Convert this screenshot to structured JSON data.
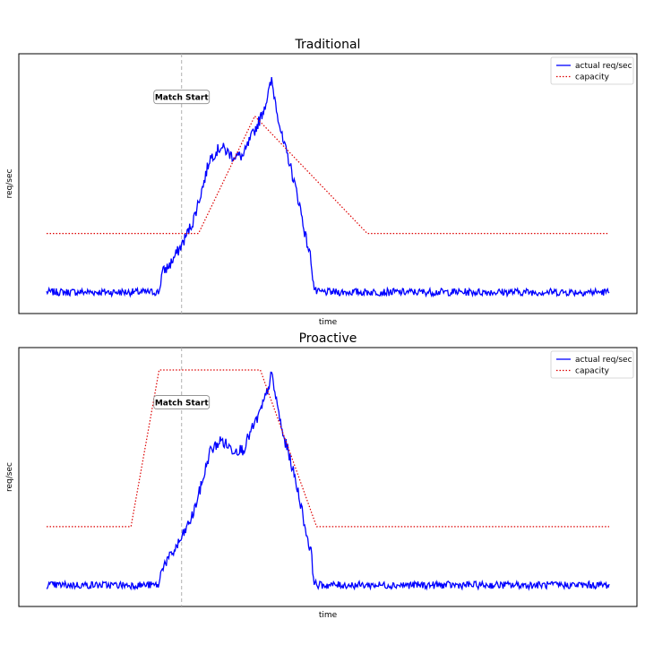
{
  "chart_data": [
    {
      "type": "line",
      "title": "Traditional",
      "xlabel": "time",
      "ylabel": "req/sec",
      "xlim": [
        0,
        100
      ],
      "ylim": [
        0,
        105
      ],
      "legend": "top-right",
      "annotation": {
        "text": "Match Start",
        "x": 24,
        "y": 91
      },
      "vline_x": 24,
      "series": [
        {
          "name": "actual req/sec",
          "color": "#0000ff",
          "style": "solid",
          "points": [
            [
              0,
              8
            ],
            [
              20,
              8
            ],
            [
              20.5,
              16
            ],
            [
              22,
              20
            ],
            [
              24,
              28
            ],
            [
              26,
              38
            ],
            [
              28,
              55
            ],
            [
              29,
              65
            ],
            [
              31,
              70
            ],
            [
              33,
              66
            ],
            [
              35,
              66
            ],
            [
              36,
              72
            ],
            [
              38,
              82
            ],
            [
              39,
              89
            ],
            [
              40,
              98
            ],
            [
              41,
              85
            ],
            [
              42,
              72
            ],
            [
              43,
              65
            ],
            [
              44,
              55
            ],
            [
              45,
              45
            ],
            [
              46,
              32
            ],
            [
              47,
              22
            ],
            [
              47.5,
              10
            ],
            [
              48,
              8
            ],
            [
              100,
              8
            ]
          ]
        },
        {
          "name": "capacity",
          "color": "#dd0000",
          "style": "dotted",
          "points": [
            [
              0,
              33
            ],
            [
              27,
              33
            ],
            [
              37,
              83
            ],
            [
              57,
              33
            ],
            [
              100,
              33
            ]
          ]
        }
      ]
    },
    {
      "type": "line",
      "title": "Proactive",
      "xlabel": "time",
      "ylabel": "req/sec",
      "xlim": [
        0,
        100
      ],
      "ylim": [
        0,
        105
      ],
      "legend": "top-right",
      "annotation": {
        "text": "Match Start",
        "x": 24,
        "y": 86
      },
      "vline_x": 24,
      "series": [
        {
          "name": "actual req/sec",
          "color": "#0000ff",
          "style": "solid",
          "points": [
            [
              0,
              8
            ],
            [
              20,
              8
            ],
            [
              20.5,
              16
            ],
            [
              22,
              20
            ],
            [
              24,
              28
            ],
            [
              26,
              38
            ],
            [
              28,
              55
            ],
            [
              29,
              65
            ],
            [
              31,
              70
            ],
            [
              33,
              66
            ],
            [
              35,
              66
            ],
            [
              36,
              72
            ],
            [
              38,
              82
            ],
            [
              39,
              89
            ],
            [
              40,
              98
            ],
            [
              41,
              85
            ],
            [
              42,
              72
            ],
            [
              43,
              65
            ],
            [
              44,
              55
            ],
            [
              45,
              45
            ],
            [
              46,
              32
            ],
            [
              47,
              22
            ],
            [
              47.5,
              10
            ],
            [
              48,
              8
            ],
            [
              100,
              8
            ]
          ]
        },
        {
          "name": "capacity",
          "color": "#dd0000",
          "style": "dotted",
          "points": [
            [
              0,
              33
            ],
            [
              15,
              33
            ],
            [
              20,
              100
            ],
            [
              38,
              100
            ],
            [
              48,
              33
            ],
            [
              100,
              33
            ]
          ]
        }
      ]
    }
  ]
}
